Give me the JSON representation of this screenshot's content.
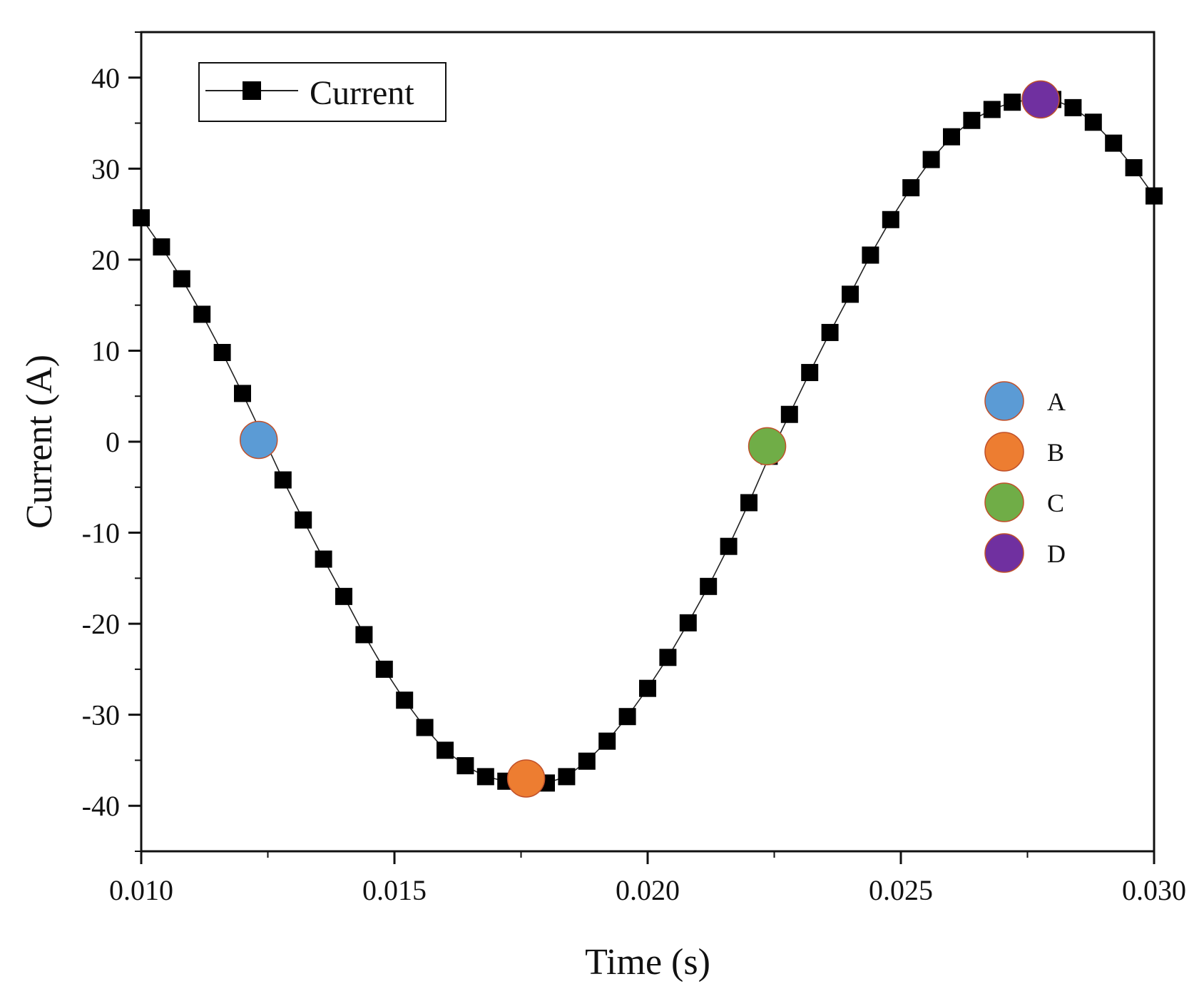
{
  "chart_data": {
    "type": "line",
    "xlabel": "Time (s)",
    "ylabel": "Current (A)",
    "xlim": [
      0.01,
      0.03
    ],
    "ylim": [
      -45,
      45
    ],
    "x_ticks": [
      0.01,
      0.015,
      0.02,
      0.025,
      0.03
    ],
    "x_tick_labels": [
      "0.010",
      "0.015",
      "0.020",
      "0.025",
      "0.030"
    ],
    "y_ticks": [
      40,
      30,
      20,
      10,
      0,
      -10,
      -20,
      -30,
      -40
    ],
    "y_tick_labels": [
      "40",
      "30",
      "20",
      "10",
      "0",
      "-10",
      "-20",
      "-30",
      "-40"
    ],
    "legend_placement": "top-left",
    "series": [
      {
        "name": "Current",
        "marker": "square",
        "color": "#000000",
        "x": [
          0.01,
          0.0104,
          0.0108,
          0.0112,
          0.0116,
          0.012,
          0.0124,
          0.0128,
          0.0132,
          0.0136,
          0.014,
          0.0144,
          0.0148,
          0.0152,
          0.0156,
          0.016,
          0.0164,
          0.0168,
          0.0172,
          0.0176,
          0.018,
          0.0184,
          0.0188,
          0.0192,
          0.0196,
          0.02,
          0.0204,
          0.0208,
          0.0212,
          0.0216,
          0.022,
          0.0224,
          0.0228,
          0.0232,
          0.0236,
          0.024,
          0.0244,
          0.0248,
          0.0252,
          0.0256,
          0.026,
          0.0264,
          0.0268,
          0.0272,
          0.0276,
          0.028,
          0.0284,
          0.0288,
          0.0292,
          0.0296,
          0.03
        ],
        "y": [
          24.6,
          21.4,
          17.9,
          14.0,
          9.8,
          5.3,
          0.6,
          -4.2,
          -8.6,
          -12.9,
          -17.0,
          -21.2,
          -25.0,
          -28.4,
          -31.4,
          -33.9,
          -35.6,
          -36.8,
          -37.3,
          -37.3,
          -37.5,
          -36.8,
          -35.1,
          -32.9,
          -30.2,
          -27.1,
          -23.7,
          -19.9,
          -15.9,
          -11.5,
          -6.7,
          -1.6,
          3.0,
          7.6,
          12.0,
          16.2,
          20.5,
          24.4,
          27.9,
          31.0,
          33.5,
          35.3,
          36.5,
          37.3,
          37.6,
          37.6,
          36.7,
          35.1,
          32.8,
          30.1,
          27.0
        ]
      }
    ],
    "markers": [
      {
        "label": "A",
        "x": 0.01232,
        "y": 0.2,
        "color": "#5b9bd5"
      },
      {
        "label": "B",
        "x": 0.0176,
        "y": -37.0,
        "color": "#ed7d31"
      },
      {
        "label": "C",
        "x": 0.02236,
        "y": -0.5,
        "color": "#70ad47"
      },
      {
        "label": "D",
        "x": 0.02776,
        "y": 37.6,
        "color": "#7030a0"
      }
    ]
  }
}
